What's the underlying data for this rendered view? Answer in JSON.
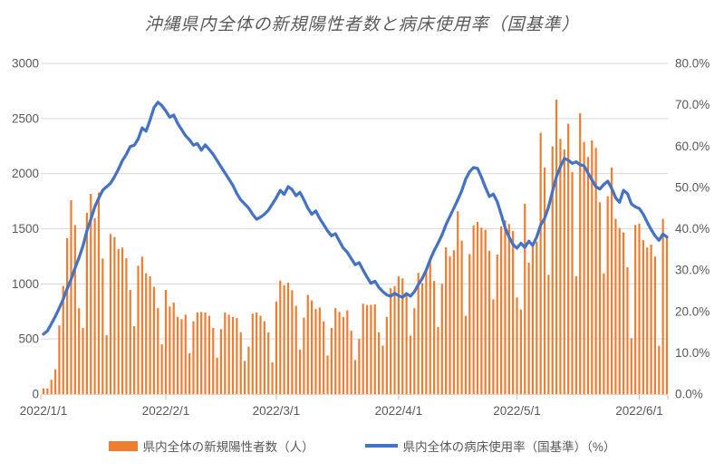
{
  "title": "沖縄県内全体の新規陽性者数と病床使用率（国基準）",
  "colors": {
    "bar": "#ED7D31",
    "line": "#4472C4",
    "grid": "#D9D9D9",
    "axis_line": "#D9D9D9",
    "tick_mark": "#BFBFBF",
    "text": "#595959",
    "background": "#FFFFFF"
  },
  "legend": {
    "cases_label": "県内全体の新規陽性者数（人）",
    "rate_label": "県内全体の病床使用率（国基準）（%）"
  },
  "chart_data": {
    "type": "combo-bar-line",
    "title": "沖縄県内全体の新規陽性者数と病床使用率（国基準）",
    "x_start": "2022/1/1",
    "x_end": "2022/6/8",
    "x_tick_labels": [
      "2022/1/1",
      "2022/2/1",
      "2022/3/1",
      "2022/4/1",
      "2022/5/1",
      "2022/6/1"
    ],
    "x_tick_day_index": [
      0,
      31,
      59,
      90,
      120,
      151
    ],
    "grid": true,
    "legend_position": "bottom",
    "left_axis": {
      "label": "県内全体の新規陽性者数（人）",
      "min": 0,
      "max": 3000,
      "step": 500,
      "ticks": [
        "0",
        "500",
        "1000",
        "1500",
        "2000",
        "2500",
        "3000"
      ]
    },
    "right_axis": {
      "label": "県内全体の病床使用率（国基準）（%）",
      "min": 0,
      "max": 80,
      "step": 10,
      "ticks": [
        "0.0%",
        "10.0%",
        "20.0%",
        "30.0%",
        "40.0%",
        "50.0%",
        "60.0%",
        "70.0%",
        "80.0%"
      ]
    },
    "series": [
      {
        "name": "県内全体の新規陽性者数（人）",
        "type": "bar",
        "axis": "left",
        "color": "#ED7D31",
        "values": [
          52,
          51,
          130,
          225,
          623,
          981,
          1414,
          1759,
          1533,
          779,
          600,
          1644,
          1817,
          1596,
          1829,
          1230,
          534,
          1452,
          1425,
          1315,
          1329,
          1233,
          945,
          617,
          1164,
          1247,
          1096,
          1068,
          973,
          781,
          452,
          945,
          795,
          830,
          700,
          680,
          720,
          370,
          660,
          740,
          745,
          740,
          710,
          600,
          330,
          590,
          740,
          720,
          700,
          690,
          560,
          300,
          430,
          730,
          740,
          710,
          660,
          560,
          288,
          840,
          1030,
          988,
          1011,
          942,
          800,
          403,
          694,
          900,
          850,
          772,
          786,
          660,
          350,
          600,
          780,
          745,
          700,
          760,
          575,
          310,
          500,
          820,
          808,
          810,
          814,
          560,
          440,
          700,
          960,
          980,
          1068,
          1050,
          900,
          530,
          780,
          1100,
          1007,
          1120,
          1212,
          1026,
          608,
          1000,
          1330,
          1250,
          1305,
          1658,
          1392,
          710,
          1270,
          1530,
          1562,
          1510,
          1490,
          1300,
          860,
          1266,
          1520,
          1576,
          1543,
          1480,
          877,
          767,
          1726,
          1192,
          1343,
          1384,
          2370,
          2055,
          1082,
          2247,
          2672,
          2315,
          2219,
          2452,
          2014,
          1068,
          2548,
          2288,
          2151,
          2302,
          2233,
          1740,
          1096,
          1795,
          2055,
          1589,
          1507,
          1466,
          1151,
          507,
          1535,
          1546,
          1397,
          1329,
          1356,
          1247,
          438,
          1589,
          1425
        ]
      },
      {
        "name": "県内全体の病床使用率（国基準）（%）",
        "type": "line",
        "axis": "right",
        "color": "#4472C4",
        "values": [
          14.5,
          15.3,
          17.0,
          18.8,
          20.8,
          23.0,
          25.5,
          27.8,
          30.5,
          33.0,
          35.8,
          39.5,
          42.3,
          45.3,
          47.4,
          49.3,
          50.2,
          51.0,
          52.6,
          54.4,
          56.5,
          58.0,
          59.9,
          60.2,
          61.7,
          64.4,
          63.6,
          66.3,
          69.3,
          70.6,
          69.8,
          68.5,
          67.0,
          67.5,
          65.5,
          64.0,
          62.5,
          61.5,
          60.2,
          60.6,
          59.0,
          60.3,
          59.2,
          58.0,
          56.5,
          55.0,
          53.5,
          52.0,
          50.5,
          48.5,
          47.0,
          46.0,
          45.0,
          43.5,
          42.3,
          42.8,
          43.5,
          44.5,
          46.0,
          47.5,
          49.3,
          48.3,
          50.2,
          49.5,
          48.0,
          48.8,
          47.0,
          45.0,
          43.5,
          44.3,
          42.5,
          41.0,
          39.5,
          38.3,
          38.8,
          37.0,
          35.3,
          34.3,
          32.8,
          31.3,
          31.8,
          30.0,
          28.3,
          26.8,
          27.3,
          25.8,
          24.8,
          24.0,
          23.7,
          24.4,
          23.8,
          23.4,
          24.3,
          23.7,
          24.8,
          26.5,
          28.0,
          30.0,
          32.5,
          34.7,
          36.5,
          38.5,
          41.0,
          43.0,
          45.0,
          47.0,
          49.2,
          52.0,
          53.8,
          54.8,
          54.6,
          52.5,
          50.0,
          47.8,
          48.4,
          46.5,
          43.5,
          40.2,
          38.0,
          36.2,
          35.3,
          36.5,
          35.5,
          37.0,
          36.0,
          38.0,
          40.9,
          42.5,
          45.3,
          49.0,
          52.6,
          55.0,
          57.0,
          56.6,
          55.8,
          56.2,
          55.5,
          55.2,
          53.5,
          51.8,
          50.2,
          49.6,
          50.7,
          51.5,
          49.8,
          47.5,
          46.4,
          49.3,
          48.5,
          46.0,
          45.3,
          44.9,
          43.5,
          41.6,
          39.8,
          38.3,
          37.2,
          38.7,
          38.0
        ]
      }
    ]
  }
}
